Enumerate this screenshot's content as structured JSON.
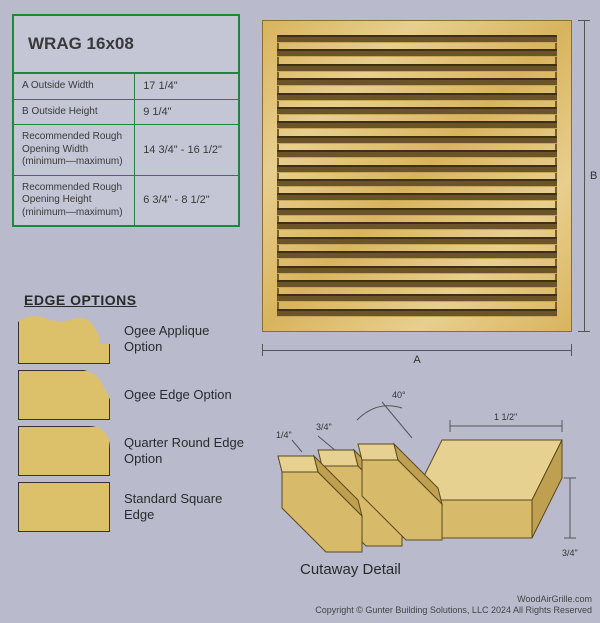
{
  "spec": {
    "title": "WRAG 16x08",
    "rows": [
      {
        "label": "A  Outside Width",
        "value": "17 1/4\""
      },
      {
        "label": "B  Outside Height",
        "value": "9 1/4\""
      },
      {
        "label": "Recommended Rough Opening Width (minimum—maximum)",
        "value": "14 3/4\" - 16 1/2\""
      },
      {
        "label": "Recommended Rough Opening Height (minimum—maximum)",
        "value": "6 3/4\" - 8 1/2\""
      }
    ],
    "border_color": "#1a8a3a",
    "bg_color": "#c4c6d6"
  },
  "grille": {
    "slat_count": 20,
    "wood_light": "#e8cf8f",
    "wood_dark": "#d9b45e",
    "slat_shadow": "#6b5528"
  },
  "dims": {
    "A": "A",
    "B": "B"
  },
  "edge": {
    "heading": "EDGE OPTIONS",
    "options": [
      {
        "class": "ogee-app",
        "label": "Ogee Applique Option"
      },
      {
        "class": "ogee-edge",
        "label": "Ogee Edge Option"
      },
      {
        "class": "qround",
        "label": "Quarter Round Edge Option"
      },
      {
        "class": "sq",
        "label": "Standard Square Edge"
      }
    ],
    "fill": "#dcc06a",
    "stroke": "#333333"
  },
  "cutaway": {
    "title": "Cutaway Detail",
    "angle": "40°",
    "d1": "1/4\"",
    "d2": "3/4\"",
    "d3": "1 1/2\"",
    "d4": "3/4\"",
    "wood_face": "#d8bb6a",
    "wood_top": "#e6d190",
    "wood_side": "#bfa050",
    "stroke": "#5a4820"
  },
  "footer": {
    "line1": "WoodAirGrille.com",
    "line2": "Copyright © Gunter Building Solutions, LLC 2024 All Rights Reserved"
  }
}
